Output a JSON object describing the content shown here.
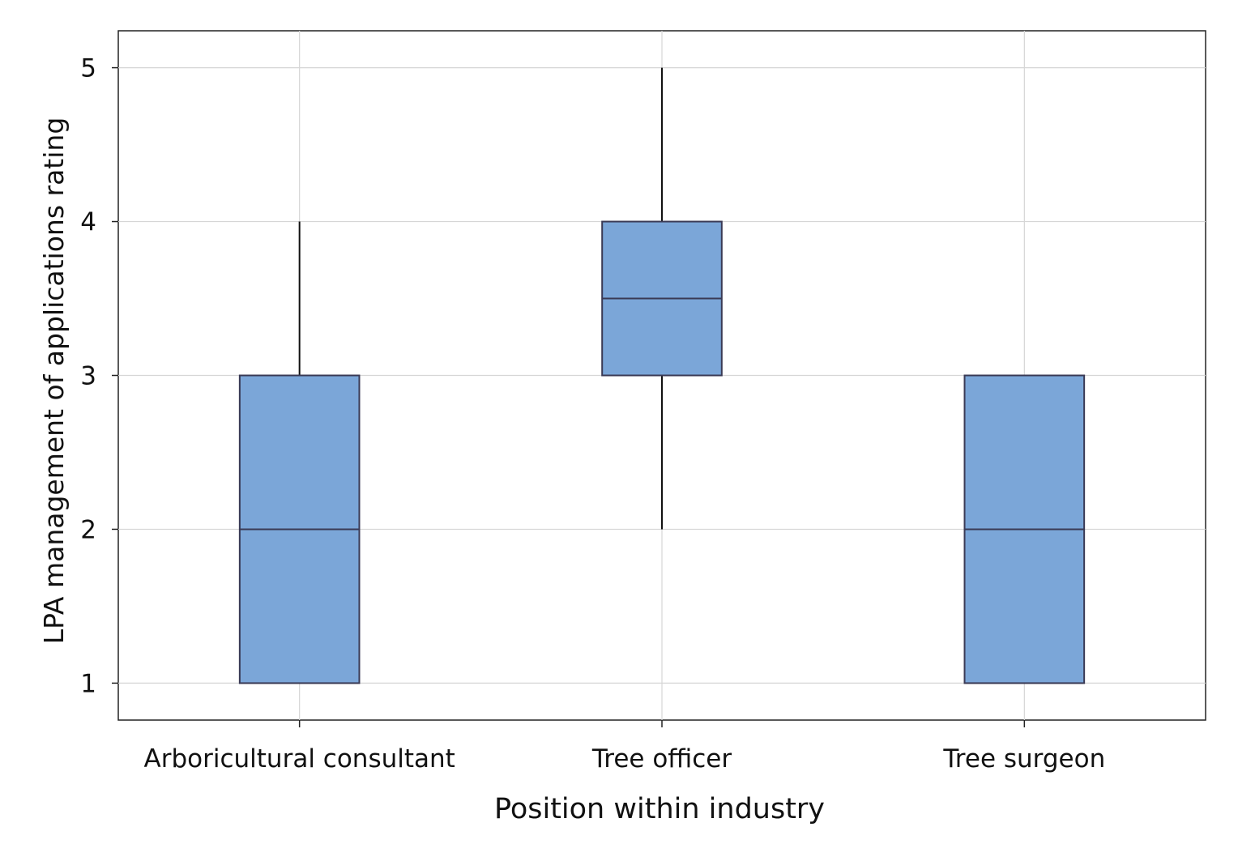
{
  "chart_data": {
    "type": "box",
    "title": "",
    "xlabel": "Position within industry",
    "ylabel": "LPA management of applications rating",
    "categories": [
      "Arboricultural consultant",
      "Tree officer",
      "Tree surgeon"
    ],
    "boxes": [
      {
        "category": "Arboricultural consultant",
        "min": 1,
        "q1": 1,
        "median": 2,
        "q3": 3,
        "max": 4
      },
      {
        "category": "Tree officer",
        "min": 2,
        "q1": 3,
        "median": 3.5,
        "q3": 4,
        "max": 5
      },
      {
        "category": "Tree surgeon",
        "min": 1,
        "q1": 1,
        "median": 2,
        "q3": 3,
        "max": 3
      }
    ],
    "yticks": [
      1,
      2,
      3,
      4,
      5
    ],
    "ylim": [
      0.76,
      5.24
    ],
    "grid": true,
    "colors": {
      "box_fill": "#7BA6D8",
      "box_edge": "#3a3a55",
      "whisker": "#111111",
      "grid": "#d6d6d6",
      "axis": "#222222"
    }
  }
}
